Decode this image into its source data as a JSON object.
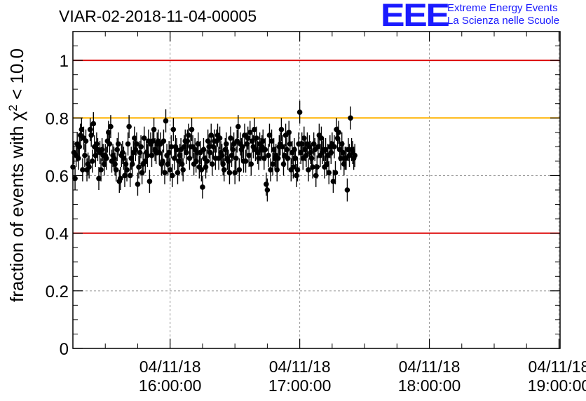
{
  "title": "VIAR-02-2018-11-04-00005",
  "logo": {
    "mark": "EEE",
    "line1": "Extreme Energy Events",
    "line2": "La Scienza nelle Scuole",
    "color": "#1a1aff"
  },
  "chart_data": {
    "type": "scatter",
    "title": "VIAR-02-2018-11-04-00005",
    "ylabel": "fraction of events with χ² < 10.0",
    "ylim": [
      0,
      1.1
    ],
    "yticks": [
      "0",
      "0.2",
      "0.4",
      "0.6",
      "0.8",
      "1"
    ],
    "xlim": [
      "04/11/18 15:15:00",
      "04/11/18 19:00:30"
    ],
    "xticks": [
      {
        "date": "04/11/18",
        "time": "16:00:00"
      },
      {
        "date": "04/11/18",
        "time": "17:00:00"
      },
      {
        "date": "04/11/18",
        "time": "18:00:00"
      },
      {
        "date": "04/11/18",
        "time": "19:00:00"
      }
    ],
    "grid": true,
    "reference_lines": [
      {
        "value": 1.0,
        "color": "#dd0000"
      },
      {
        "value": 0.8,
        "color": "#ffb300"
      },
      {
        "value": 0.4,
        "color": "#dd0000"
      }
    ],
    "error_bar": 0.04,
    "x_start": "15:15:00",
    "x_step_seconds": 30,
    "values": [
      0.63,
      0.68,
      0.59,
      0.67,
      0.71,
      0.66,
      0.7,
      0.74,
      0.76,
      0.62,
      0.73,
      0.67,
      0.72,
      0.62,
      0.64,
      0.63,
      0.76,
      0.74,
      0.65,
      0.78,
      0.7,
      0.67,
      0.71,
      0.69,
      0.59,
      0.68,
      0.62,
      0.69,
      0.67,
      0.64,
      0.67,
      0.66,
      0.72,
      0.75,
      0.71,
      0.77,
      0.65,
      0.67,
      0.66,
      0.64,
      0.62,
      0.69,
      0.71,
      0.58,
      0.59,
      0.67,
      0.68,
      0.66,
      0.6,
      0.64,
      0.62,
      0.71,
      0.77,
      0.6,
      0.66,
      0.64,
      0.68,
      0.73,
      0.69,
      0.71,
      0.57,
      0.63,
      0.68,
      0.7,
      0.61,
      0.64,
      0.73,
      0.65,
      0.68,
      0.67,
      0.72,
      0.58,
      0.71,
      0.67,
      0.72,
      0.76,
      0.69,
      0.68,
      0.71,
      0.72,
      0.68,
      0.71,
      0.64,
      0.65,
      0.72,
      0.61,
      0.79,
      0.67,
      0.64,
      0.68,
      0.62,
      0.7,
      0.6,
      0.76,
      0.66,
      0.7,
      0.69,
      0.61,
      0.65,
      0.67,
      0.69,
      0.64,
      0.62,
      0.7,
      0.72,
      0.68,
      0.72,
      0.74,
      0.66,
      0.7,
      0.76,
      0.7,
      0.64,
      0.69,
      0.65,
      0.68,
      0.71,
      0.63,
      0.68,
      0.62,
      0.56,
      0.69,
      0.66,
      0.63,
      0.65,
      0.72,
      0.7,
      0.68,
      0.74,
      0.64,
      0.7,
      0.72,
      0.66,
      0.72,
      0.74,
      0.66,
      0.73,
      0.68,
      0.67,
      0.64,
      0.62,
      0.69,
      0.71,
      0.66,
      0.65,
      0.61,
      0.73,
      0.67,
      0.69,
      0.71,
      0.61,
      0.66,
      0.72,
      0.77,
      0.62,
      0.71,
      0.69,
      0.7,
      0.65,
      0.74,
      0.65,
      0.71,
      0.73,
      0.67,
      0.75,
      0.64,
      0.72,
      0.7,
      0.76,
      0.69,
      0.73,
      0.68,
      0.66,
      0.71,
      0.69,
      0.7,
      0.72,
      0.66,
      0.69,
      0.57,
      0.55,
      0.67,
      0.74,
      0.62,
      0.72,
      0.64,
      0.69,
      0.66,
      0.67,
      0.62,
      0.66,
      0.7,
      0.71,
      0.76,
      0.7,
      0.64,
      0.67,
      0.74,
      0.69,
      0.66,
      0.75,
      0.71,
      0.62,
      0.68,
      0.63,
      0.69,
      0.66,
      0.6,
      0.62,
      0.71,
      0.82,
      0.68,
      0.71,
      0.66,
      0.73,
      0.69,
      0.67,
      0.71,
      0.62,
      0.7,
      0.68,
      0.66,
      0.63,
      0.71,
      0.69,
      0.6,
      0.63,
      0.7,
      0.74,
      0.67,
      0.73,
      0.68,
      0.69,
      0.63,
      0.69,
      0.64,
      0.67,
      0.61,
      0.7,
      0.68,
      0.71,
      0.58,
      0.7,
      0.61,
      0.76,
      0.73,
      0.75,
      0.69,
      0.66,
      0.71,
      0.68,
      0.64,
      0.66,
      0.66,
      0.55,
      0.69,
      0.67,
      0.8,
      0.69,
      0.68,
      0.66,
      0.67
    ]
  }
}
